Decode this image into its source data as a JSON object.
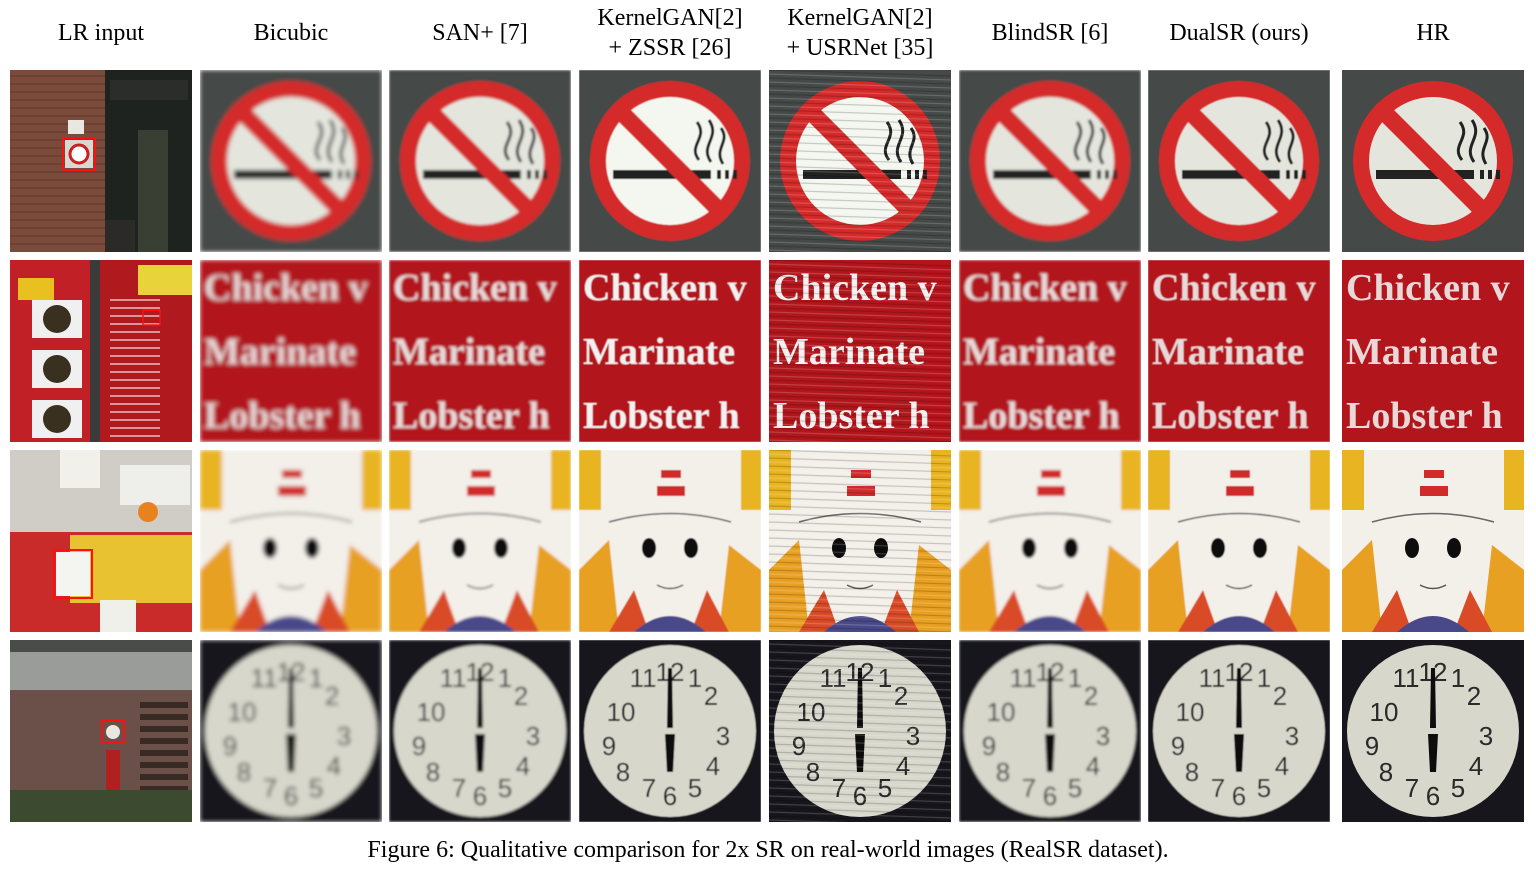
{
  "figure": {
    "columns": [
      "LR input",
      "Bicubic",
      "SAN+ [7]",
      "KernelGAN[2] + ZSSR [26]",
      "KernelGAN[2] + USRNet [35]",
      "BlindSR [6]",
      "DualSR (ours)",
      "HR"
    ],
    "column_lines": [
      [
        "LR input"
      ],
      [
        "Bicubic"
      ],
      [
        "SAN+ [7]"
      ],
      [
        "KernelGAN[2]",
        "+ ZSSR [26]"
      ],
      [
        "KernelGAN[2]",
        "+ USRNet [35]"
      ],
      [
        "BlindSR [6]"
      ],
      [
        "DualSR (ours)"
      ],
      [
        "HR"
      ]
    ],
    "rows": [
      {
        "subject": "no-smoking-sign"
      },
      {
        "subject": "menu-text",
        "text_lines": [
          "Chicken v",
          "Marinate",
          "Lobster h"
        ]
      },
      {
        "subject": "cartoon-worker"
      },
      {
        "subject": "clock",
        "numerals": [
          "12",
          "11",
          "1",
          "2",
          "10",
          "3",
          "9",
          "4",
          "8",
          "5",
          "7",
          "6"
        ]
      }
    ],
    "caption": "Figure 6: Qualitative comparison for 2x SR on real-world images (RealSR dataset)."
  }
}
